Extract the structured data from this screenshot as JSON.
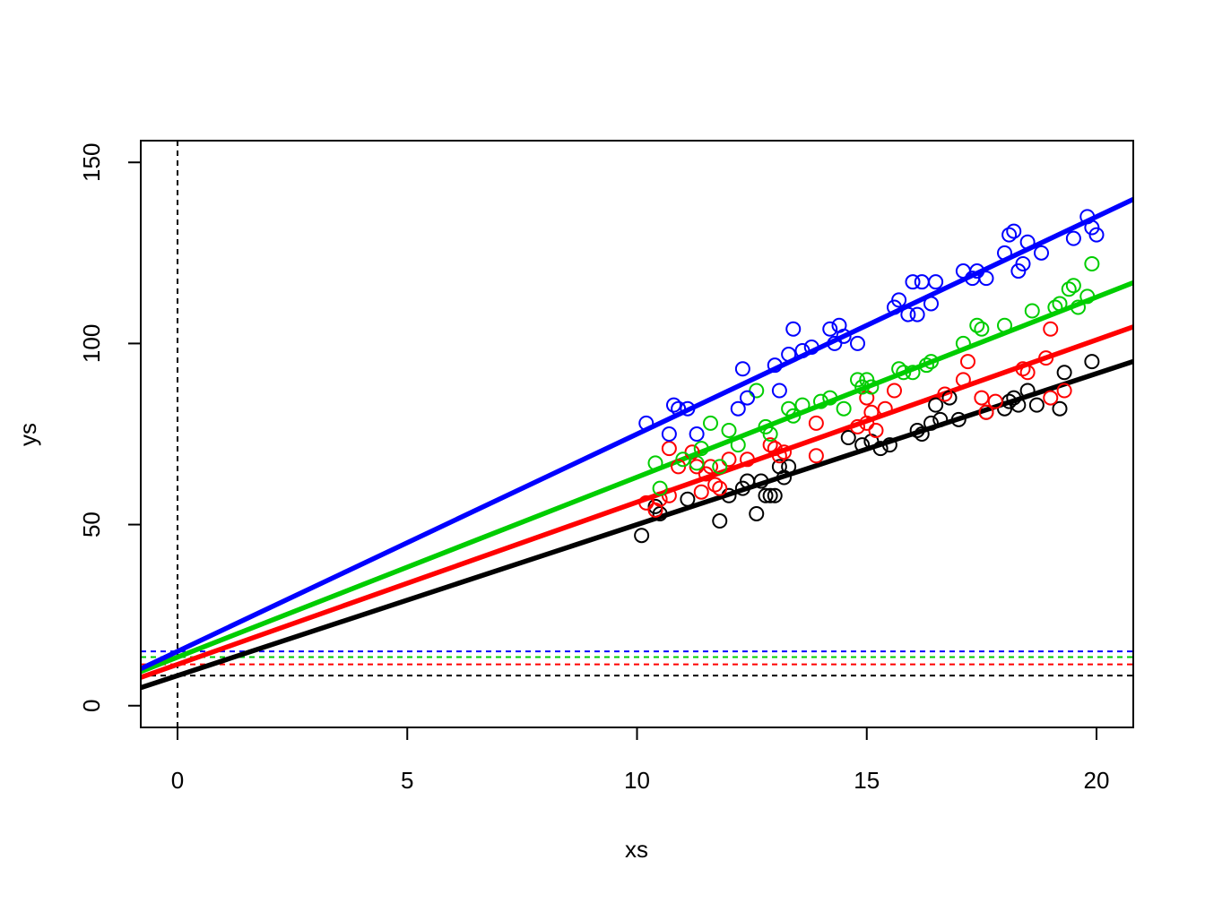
{
  "chart_data": {
    "type": "scatter",
    "title": "",
    "xlabel": "xs",
    "ylabel": "ys",
    "xlim": [
      -0.8,
      20.8
    ],
    "ylim": [
      -6,
      156
    ],
    "x_ticks": [
      "0",
      "5",
      "10",
      "15",
      "20"
    ],
    "y_ticks": [
      "0",
      "50",
      "100",
      "150"
    ],
    "grid": false,
    "legend": "none",
    "vertical_reference": {
      "x": 0,
      "color": "#000000",
      "style": "dashed"
    },
    "series": [
      {
        "color": "#000000",
        "fit_line": {
          "intercept": 8.3,
          "slope": 4.17
        },
        "intercept_reference": 8.3,
        "points": [
          [
            10.1,
            47
          ],
          [
            10.4,
            55
          ],
          [
            10.5,
            53
          ],
          [
            11.1,
            57
          ],
          [
            11.8,
            51
          ],
          [
            12.0,
            58
          ],
          [
            12.3,
            60
          ],
          [
            12.4,
            62
          ],
          [
            12.6,
            53
          ],
          [
            12.7,
            62
          ],
          [
            12.8,
            58
          ],
          [
            12.9,
            58
          ],
          [
            13.0,
            58
          ],
          [
            13.1,
            66
          ],
          [
            13.2,
            63
          ],
          [
            13.3,
            66
          ],
          [
            14.6,
            74
          ],
          [
            14.9,
            72
          ],
          [
            15.1,
            73
          ],
          [
            15.3,
            71
          ],
          [
            15.5,
            72
          ],
          [
            16.1,
            76
          ],
          [
            16.2,
            75
          ],
          [
            16.4,
            78
          ],
          [
            16.5,
            83
          ],
          [
            16.6,
            79
          ],
          [
            16.8,
            85
          ],
          [
            17.0,
            79
          ],
          [
            17.6,
            81
          ],
          [
            18.0,
            82
          ],
          [
            18.1,
            84
          ],
          [
            18.2,
            85
          ],
          [
            18.3,
            83
          ],
          [
            18.5,
            87
          ],
          [
            18.7,
            83
          ],
          [
            19.2,
            82
          ],
          [
            19.3,
            92
          ],
          [
            19.9,
            95
          ]
        ]
      },
      {
        "color": "#ff0000",
        "fit_line": {
          "intercept": 11.4,
          "slope": 4.48
        },
        "intercept_reference": 11.4,
        "points": [
          [
            10.2,
            56
          ],
          [
            10.4,
            54
          ],
          [
            10.5,
            57
          ],
          [
            10.7,
            58
          ],
          [
            10.7,
            71
          ],
          [
            10.9,
            66
          ],
          [
            11.2,
            70
          ],
          [
            11.3,
            66
          ],
          [
            11.4,
            59
          ],
          [
            11.5,
            64
          ],
          [
            11.6,
            66
          ],
          [
            11.7,
            61
          ],
          [
            11.8,
            60
          ],
          [
            12.0,
            68
          ],
          [
            12.4,
            68
          ],
          [
            12.9,
            72
          ],
          [
            13.0,
            71
          ],
          [
            13.1,
            69
          ],
          [
            13.2,
            70
          ],
          [
            13.9,
            69
          ],
          [
            13.9,
            78
          ],
          [
            14.8,
            77
          ],
          [
            15.0,
            78
          ],
          [
            15.0,
            85
          ],
          [
            15.1,
            81
          ],
          [
            15.2,
            76
          ],
          [
            15.4,
            82
          ],
          [
            15.6,
            87
          ],
          [
            16.7,
            86
          ],
          [
            17.1,
            90
          ],
          [
            17.2,
            95
          ],
          [
            17.5,
            85
          ],
          [
            17.6,
            81
          ],
          [
            17.8,
            84
          ],
          [
            18.4,
            93
          ],
          [
            18.5,
            92
          ],
          [
            18.9,
            96
          ],
          [
            19.0,
            104
          ],
          [
            19.0,
            85
          ],
          [
            19.3,
            87
          ]
        ]
      },
      {
        "color": "#00cd00",
        "fit_line": {
          "intercept": 13.4,
          "slope": 4.97
        },
        "intercept_reference": 13.4,
        "points": [
          [
            10.4,
            67
          ],
          [
            10.5,
            60
          ],
          [
            11.0,
            68
          ],
          [
            11.3,
            67
          ],
          [
            11.4,
            71
          ],
          [
            11.6,
            78
          ],
          [
            11.8,
            66
          ],
          [
            12.0,
            76
          ],
          [
            12.2,
            72
          ],
          [
            12.6,
            87
          ],
          [
            12.8,
            77
          ],
          [
            12.9,
            75
          ],
          [
            13.3,
            82
          ],
          [
            13.4,
            80
          ],
          [
            13.6,
            83
          ],
          [
            14.0,
            84
          ],
          [
            14.2,
            85
          ],
          [
            14.5,
            82
          ],
          [
            14.8,
            90
          ],
          [
            14.9,
            88
          ],
          [
            15.0,
            90
          ],
          [
            15.1,
            88
          ],
          [
            15.7,
            93
          ],
          [
            15.8,
            92
          ],
          [
            16.0,
            92
          ],
          [
            16.3,
            94
          ],
          [
            16.4,
            95
          ],
          [
            17.1,
            100
          ],
          [
            17.4,
            105
          ],
          [
            17.5,
            104
          ],
          [
            18.0,
            105
          ],
          [
            18.6,
            109
          ],
          [
            19.1,
            110
          ],
          [
            19.2,
            111
          ],
          [
            19.4,
            115
          ],
          [
            19.5,
            116
          ],
          [
            19.6,
            110
          ],
          [
            19.8,
            113
          ],
          [
            19.9,
            122
          ]
        ]
      },
      {
        "color": "#0000ff",
        "fit_line": {
          "intercept": 15.0,
          "slope": 6.0
        },
        "intercept_reference": 15.0,
        "points": [
          [
            10.2,
            78
          ],
          [
            10.7,
            75
          ],
          [
            10.8,
            83
          ],
          [
            10.9,
            82
          ],
          [
            11.1,
            82
          ],
          [
            11.3,
            75
          ],
          [
            12.2,
            82
          ],
          [
            12.3,
            93
          ],
          [
            12.4,
            85
          ],
          [
            13.0,
            94
          ],
          [
            13.1,
            87
          ],
          [
            13.3,
            97
          ],
          [
            13.4,
            104
          ],
          [
            13.6,
            98
          ],
          [
            13.8,
            99
          ],
          [
            14.2,
            104
          ],
          [
            14.3,
            100
          ],
          [
            14.4,
            105
          ],
          [
            14.5,
            102
          ],
          [
            14.8,
            100
          ],
          [
            15.6,
            110
          ],
          [
            15.7,
            112
          ],
          [
            15.9,
            108
          ],
          [
            16.0,
            117
          ],
          [
            16.1,
            108
          ],
          [
            16.2,
            117
          ],
          [
            16.4,
            111
          ],
          [
            16.5,
            117
          ],
          [
            17.1,
            120
          ],
          [
            17.3,
            118
          ],
          [
            17.4,
            120
          ],
          [
            17.6,
            118
          ],
          [
            18.0,
            125
          ],
          [
            18.1,
            130
          ],
          [
            18.2,
            131
          ],
          [
            18.3,
            120
          ],
          [
            18.4,
            122
          ],
          [
            18.5,
            128
          ],
          [
            18.8,
            125
          ],
          [
            19.5,
            129
          ],
          [
            19.8,
            135
          ],
          [
            19.9,
            132
          ],
          [
            20.0,
            130
          ]
        ]
      }
    ]
  }
}
